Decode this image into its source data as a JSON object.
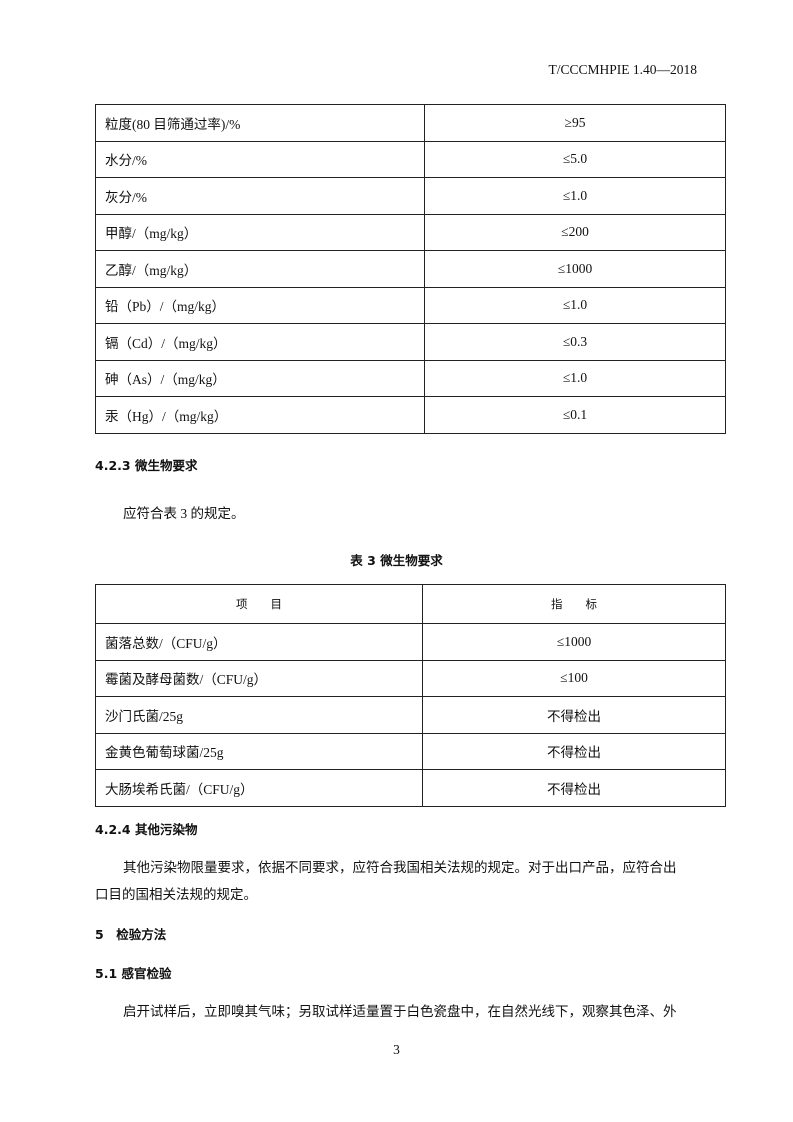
{
  "header": {
    "doc_id": "T/CCCMHPIE 1.40—2018"
  },
  "table2": {
    "rows": [
      {
        "item": "粒度(80 目筛通过率)/%",
        "value": "≥95"
      },
      {
        "item": "水分/%",
        "value": "≤5.0"
      },
      {
        "item": "灰分/%",
        "value": "≤1.0"
      },
      {
        "item": "甲醇/（mg/kg）",
        "value": "≤200"
      },
      {
        "item": "乙醇/（mg/kg）",
        "value": "≤1000"
      },
      {
        "item": "铅（Pb）/（mg/kg）",
        "value": "≤1.0"
      },
      {
        "item": "镉（Cd）/（mg/kg）",
        "value": "≤0.3"
      },
      {
        "item": "砷（As）/（mg/kg）",
        "value": "≤1.0"
      },
      {
        "item": "汞（Hg）/（mg/kg）",
        "value": "≤0.1"
      }
    ]
  },
  "s423": {
    "heading": "4.2.3 微生物要求",
    "text": "应符合表 3 的规定。"
  },
  "table3": {
    "caption": "表 3 微生物要求",
    "col_item": "项　　目",
    "col_value": "指　　标",
    "rows": [
      {
        "item": "菌落总数/（CFU/g）",
        "value": "≤1000"
      },
      {
        "item": "霉菌及酵母菌数/（CFU/g）",
        "value": "≤100"
      },
      {
        "item": "沙门氏菌/25g",
        "value": "不得检出"
      },
      {
        "item": "金黄色葡萄球菌/25g",
        "value": "不得检出"
      },
      {
        "item": "大肠埃希氏菌/（CFU/g）",
        "value": "不得检出"
      }
    ]
  },
  "s424": {
    "heading": "4.2.4 其他污染物",
    "line1": "其他污染物限量要求，依据不同要求，应符合我国相关法规的规定。对于出口产品，应符合出",
    "line2": "口目的国相关法规的规定。"
  },
  "s5": {
    "heading": "5　检验方法"
  },
  "s51": {
    "heading": "5.1 感官检验",
    "line1": "启开试样后，立即嗅其气味；另取试样适量置于白色瓷盘中，在自然光线下，观察其色泽、外"
  },
  "footer": {
    "page": "3"
  }
}
